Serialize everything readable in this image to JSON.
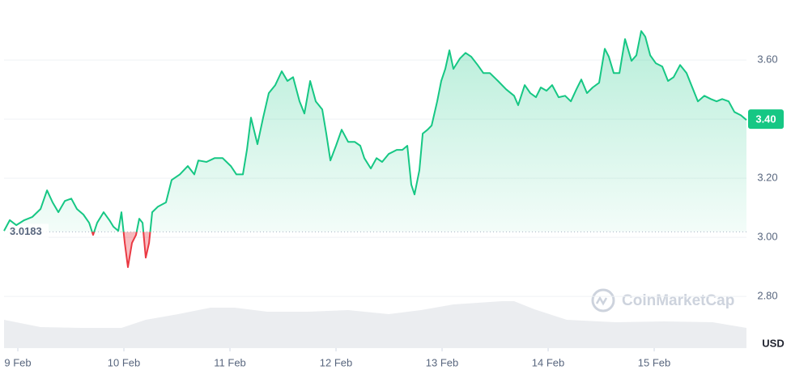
{
  "chart_data": {
    "type": "line",
    "watermark": "CoinMarketCap",
    "currency": "USD",
    "color": "#16c784",
    "down_color": "#ea3943",
    "baseline": 3.0183,
    "last_price": {
      "value": 3.4,
      "label": "3.40"
    },
    "xlim": [
      8.87,
      15.87
    ],
    "xticks": [
      {
        "value": 9,
        "label": "9 Feb"
      },
      {
        "value": 10,
        "label": "10 Feb"
      },
      {
        "value": 11,
        "label": "11 Feb"
      },
      {
        "value": 12,
        "label": "12 Feb"
      },
      {
        "value": 13,
        "label": "13 Feb"
      },
      {
        "value": 14,
        "label": "14 Feb"
      },
      {
        "value": 15,
        "label": "15 Feb"
      }
    ],
    "ylim": [
      2.625,
      3.803
    ],
    "yticks": [
      {
        "value": 2.8,
        "label": "2.80"
      },
      {
        "value": 3,
        "label": "3.00"
      },
      {
        "value": 3.2,
        "label": "3.20"
      },
      {
        "value": 3.4,
        "label": "3.40"
      },
      {
        "value": 3.6,
        "label": "3.60"
      }
    ],
    "grid": true,
    "x": [
      8.87,
      8.924,
      8.985,
      9.061,
      9.137,
      9.214,
      9.275,
      9.328,
      9.382,
      9.443,
      9.504,
      9.557,
      9.618,
      9.672,
      9.71,
      9.748,
      9.809,
      9.863,
      9.901,
      9.947,
      9.977,
      10.008,
      10.038,
      10.076,
      10.114,
      10.145,
      10.176,
      10.206,
      10.237,
      10.267,
      10.321,
      10.397,
      10.45,
      10.527,
      10.603,
      10.664,
      10.702,
      10.779,
      10.855,
      10.931,
      11.008,
      11.061,
      11.122,
      11.16,
      11.198,
      11.259,
      11.313,
      11.366,
      11.427,
      11.488,
      11.542,
      11.595,
      11.656,
      11.702,
      11.756,
      11.809,
      11.87,
      11.908,
      11.947,
      12.0,
      12.053,
      12.114,
      12.176,
      12.229,
      12.267,
      12.328,
      12.382,
      12.435,
      12.496,
      12.572,
      12.626,
      12.672,
      12.71,
      12.74,
      12.786,
      12.817,
      12.863,
      12.901,
      12.954,
      12.992,
      13.03,
      13.069,
      13.107,
      13.168,
      13.221,
      13.275,
      13.336,
      13.389,
      13.45,
      13.527,
      13.603,
      13.679,
      13.717,
      13.779,
      13.832,
      13.885,
      13.931,
      13.985,
      14.038,
      14.099,
      14.16,
      14.214,
      14.267,
      14.313,
      14.366,
      14.42,
      14.481,
      14.534,
      14.572,
      14.618,
      14.672,
      14.725,
      14.786,
      14.832,
      14.878,
      14.916,
      14.962,
      15.015,
      15.076,
      15.13,
      15.183,
      15.244,
      15.305,
      15.359,
      15.412,
      15.473,
      15.534,
      15.588,
      15.641,
      15.702,
      15.756,
      15.817,
      15.87
    ],
    "values": [
      3.022,
      3.058,
      3.041,
      3.058,
      3.069,
      3.096,
      3.159,
      3.118,
      3.085,
      3.123,
      3.131,
      3.096,
      3.077,
      3.049,
      3.008,
      3.049,
      3.085,
      3.058,
      3.036,
      3.022,
      3.085,
      2.981,
      2.899,
      2.981,
      3.008,
      3.063,
      3.049,
      2.931,
      2.981,
      3.085,
      3.104,
      3.118,
      3.194,
      3.213,
      3.241,
      3.213,
      3.26,
      3.255,
      3.268,
      3.268,
      3.241,
      3.213,
      3.213,
      3.296,
      3.405,
      3.315,
      3.405,
      3.488,
      3.515,
      3.562,
      3.529,
      3.542,
      3.46,
      3.419,
      3.529,
      3.46,
      3.433,
      3.351,
      3.26,
      3.31,
      3.364,
      3.323,
      3.323,
      3.31,
      3.268,
      3.233,
      3.268,
      3.255,
      3.282,
      3.296,
      3.296,
      3.31,
      3.178,
      3.145,
      3.227,
      3.351,
      3.364,
      3.378,
      3.46,
      3.529,
      3.57,
      3.633,
      3.57,
      3.605,
      3.624,
      3.611,
      3.583,
      3.556,
      3.556,
      3.529,
      3.501,
      3.479,
      3.447,
      3.515,
      3.488,
      3.474,
      3.507,
      3.496,
      3.515,
      3.474,
      3.479,
      3.46,
      3.501,
      3.534,
      3.488,
      3.507,
      3.523,
      3.638,
      3.611,
      3.556,
      3.556,
      3.671,
      3.597,
      3.616,
      3.698,
      3.679,
      3.616,
      3.589,
      3.578,
      3.529,
      3.542,
      3.583,
      3.556,
      3.507,
      3.46,
      3.479,
      3.468,
      3.46,
      3.468,
      3.46,
      3.424,
      3.413,
      3.397
    ],
    "volume": {
      "lim": [
        0,
        100
      ],
      "x": [
        8.87,
        9.214,
        9.595,
        9.977,
        10.206,
        10.511,
        10.817,
        11.046,
        11.351,
        11.733,
        12.114,
        12.496,
        12.802,
        13.107,
        13.565,
        13.679,
        13.87,
        14.176,
        14.634,
        15.092,
        15.55,
        15.87
      ],
      "values": [
        35,
        26,
        25,
        25,
        35,
        42,
        50,
        50,
        45,
        45,
        47,
        42,
        47,
        54,
        58,
        58,
        48,
        35,
        32,
        33,
        32,
        25
      ]
    }
  }
}
